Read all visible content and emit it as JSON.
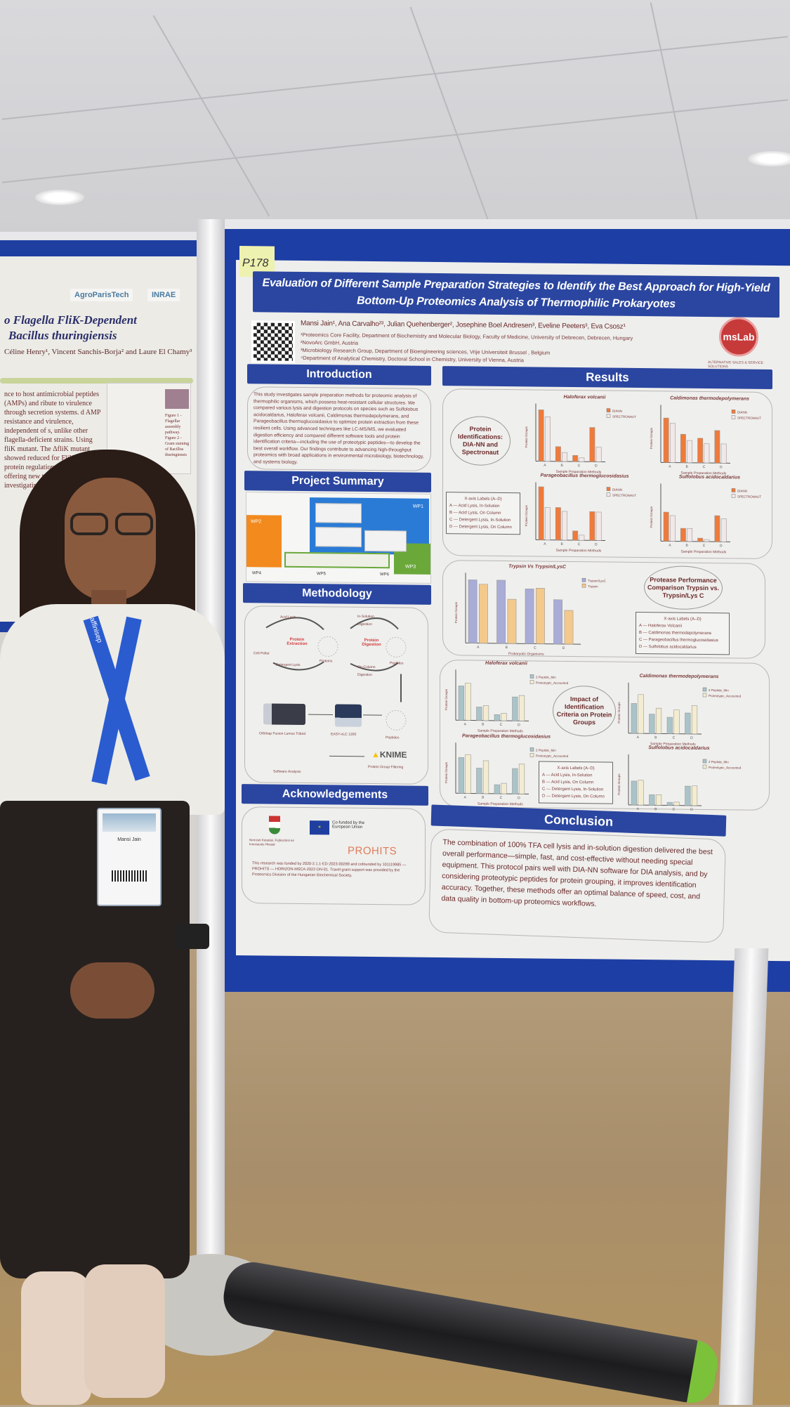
{
  "left_poster": {
    "title_line1": "o Flagella FliK-Dependent",
    "title_line2": "Bacillus thuringiensis",
    "authors": "Céline Henry¹, Vincent Sanchis-Borja² and Laure El Chamy³",
    "logos": [
      "AgroParisTech",
      "INRAE"
    ],
    "body": "nce to host antimicrobial peptides (AMPs) and ribute to virulence through secretion systems. d AMP resistance and virulence, independent of s, unlike other flagella-deficient strains. Using fliK mutant. The ΔfliK mutant showed reduced for FliK in protein regulation and cell surface offering new targets for investigating bacterial",
    "figure_caption": "Figure 1 - Flagellar assembly pathway. Figure 2 - Gram staining of Bacillus thuringiensis"
  },
  "poster": {
    "number_tag": "P178",
    "title": "Evaluation of Different Sample Preparation Strategies to Identify the Best Approach for High-Yield Bottom-Up Proteomics Analysis of Thermophilic Prokaryotes",
    "authors": "Mansi Jain¹, Ana Carvalho²³, Julian Quehenberger², Josephine Boel Andresen³, Eveline Peeters³, Eva Csosz¹",
    "affiliations": [
      "¹Proteomics Core Facility, Department of Biochemistry and Molecular Biology, Faculty of Medicine, University of Debrecen, Debrecen, Hungary",
      "²NovoArc GmbH, Austria",
      "³Microbiology Research Group, Department of Bioengineering sciences, Vrije Universiteit Brussel , Belgium",
      "⁴Department of Analytical Chemistry, Doctoral School in Chemistry, University of Vienna, Austria"
    ],
    "logo": "msLab",
    "logo_tagline": "ALTERNATIVE SALES & SERVICE SOLUTIONS",
    "sections": {
      "introduction": "Introduction",
      "project_summary": "Project Summary",
      "methodology": "Methodology",
      "acknowledgements": "Acknowledgements",
      "results": "Results",
      "conclusion": "Conclusion"
    },
    "introduction_text": "This study investigates sample preparation methods for proteomic analysis of thermophilic organisms, which possess heat-resistant cellular structures. We compared various lysis and digestion protocols on species such as Sulfolobus acidocaldarius, Haloferax volcanii, Caldimonas thermodepolymerans, and Parageobacillus thermoglucosidasius to optimize protein extraction from these resilient cells. Using advanced techniques like LC-MS/MS, we evaluated digestion efficiency and compared different software tools and protein identification criteria—including the use of proteotypic peptides—to develop the best overall workflow. Our findings contribute to advancing high-throughput proteomics with broad applications in environmental microbiology, biotechnology, and systems biology.",
    "project_summary_labels": [
      "WP1",
      "WP2",
      "WP3",
      "WP4",
      "WP5",
      "WP6"
    ],
    "methodology": {
      "labels": [
        "Acid Lysis",
        "Protein Extraction",
        "Cell Pellet",
        "Detergent Lysis",
        "Proteins",
        "In-Solution Digestion",
        "Protein Digestion",
        "On-Column Digestion",
        "Peptides",
        "Peptides",
        "EASY-nLC 1200",
        "Orbitrap Fusion Lumos Tribrid",
        "Software Analysis",
        "Protein Group Filtering"
      ],
      "knime": "KNIME"
    },
    "acknowledgements": {
      "hungary_caption": "Nemzeti Kutatási, Fejlesztési és Innovációs Hivatal",
      "eu": "Co-funded by the European Union",
      "prohits": "PROHITS",
      "text": "This research was funded by 2020-2.1.1-ED-2023-00289 and cofounded by 101119985 — PROHITS — HORIZON-MSCA-2022-DN-01. Travel grant support was provided by the Proteomics Division of the Hungarian Biochemical Society."
    },
    "results": {
      "oval1": "Protein Identifications: DIA-NN and Spectronaut",
      "oval2": "Protease Performance Comparison Trypsin vs. Trypsin/Lys C",
      "oval3": "Impact of Identification Criteria on Protein Groups",
      "xaxis_methods": "Sample Preparation Methods",
      "xaxis_organisms": "Prokaryotic Organisms",
      "yaxis": "Protein Groups",
      "legend_methods_title": "X-axis Labels (A–D)",
      "legend_methods": [
        "A — Acid Lysis, In-Solution",
        "B — Acid Lysis, On Column",
        "C — Detergent Lysis, In-Solution",
        "D — Detergent Lysis, On Column"
      ],
      "legend_organisms_title": "X-axis Labels (A–D)",
      "legend_organisms": [
        "A — Haloferax Volcanii",
        "B — Caldimonas thermodepolymerans",
        "C — Parageobacillus thermoglucosidasius",
        "D — Sulfolobus acidocaldarius"
      ],
      "categories": [
        "A",
        "B",
        "C",
        "D"
      ],
      "colors": {
        "diann": "#f07a3a",
        "spectronaut": "#f2e8e8",
        "trypsin_lysc": "#a9acd6",
        "trypsin": "#f3c98c",
        "peptide2": "#a9c4c8",
        "proteotypic": "#f3ecd0"
      },
      "software_charts": [
        {
          "title": "Haloferax volcanii",
          "series": [
            {
              "name": "DIANN",
              "values": [
                1500,
                1300,
                430,
                260,
                180,
                110,
                1000,
                430
              ]
            }
          ]
        },
        {
          "title": "Caldimonas thermodepolymerans",
          "series": [
            {
              "name": "DIANN",
              "values": [
                1300,
                1150,
                830,
                650,
                720,
                560,
                950,
                560
              ]
            }
          ]
        },
        {
          "title": "Parageobacillus thermoglucosidasius",
          "series": [
            {
              "name": "DIANN",
              "values": [
                1550,
                950,
                950,
                840,
                270,
                150,
                840,
                830
              ]
            }
          ]
        },
        {
          "title": "Sulfolobus acidocaldarius",
          "series": [
            {
              "name": "DIANN",
              "values": [
                850,
                750,
                380,
                380,
                100,
                60,
                760,
                670
              ]
            }
          ]
        }
      ],
      "software_legend": [
        "DIANN",
        "SPECTRONAUT"
      ],
      "protease_chart": {
        "title": "Trypsin Vs Trypsin/LysC",
        "legend": [
          "Trypsin/LysC",
          "Trypsin"
        ],
        "values": [
          1500,
          1400,
          1500,
          1050,
          1300,
          1320,
          1050,
          800
        ]
      },
      "criteria_legend": [
        "2 Peptide_Min",
        "Proteotypic_Accounted"
      ],
      "criteria_charts": [
        {
          "title": "Haloferax volcanii",
          "values": [
            1150,
            1250,
            450,
            500,
            200,
            250,
            800,
            850
          ]
        },
        {
          "title": "Caldimonas thermodepolymerans",
          "values": [
            1000,
            1300,
            650,
            850,
            550,
            800,
            700,
            950
          ]
        },
        {
          "title": "Parageobacillus thermoglucosidasius",
          "values": [
            1200,
            1300,
            850,
            1100,
            300,
            350,
            850,
            1000
          ]
        },
        {
          "title": "Sulfolobus acidocaldarius",
          "values": [
            800,
            830,
            350,
            350,
            100,
            110,
            650,
            660
          ]
        }
      ]
    },
    "conclusion_text": "The combination of 100% TFA cell lysis and in-solution digestion delivered the best overall performance—simple, fast, and cost-effective without needing special equipment. This protocol pairs well with DIA-NN software for DIA analysis, and by considering proteotypic peptides for protein grouping, it improves identification accuracy. Together, these methods offer an optimal balance of speed, cost, and data quality in bottom-up proteomics workflows."
  },
  "person": {
    "lanyard_text": "affinisep",
    "badge_name": "Mansi Jain"
  }
}
